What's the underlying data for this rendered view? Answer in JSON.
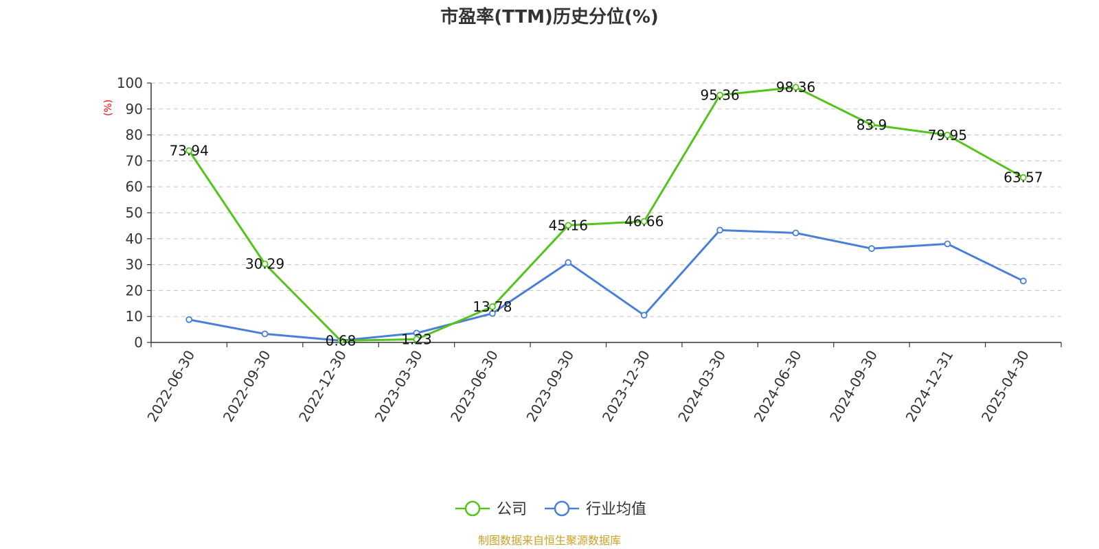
{
  "chart_data": {
    "type": "line",
    "title": "市盈率(TTM)历史分位(%)",
    "xlabel": "",
    "ylabel": "(%)",
    "ylim": [
      0,
      100
    ],
    "yticks": [
      0,
      10,
      20,
      30,
      40,
      50,
      60,
      70,
      80,
      90,
      100
    ],
    "grid": true,
    "legend_position": "bottom-center",
    "categories": [
      "2022-06-30",
      "2022-09-30",
      "2022-12-30",
      "2023-03-30",
      "2023-06-30",
      "2023-09-30",
      "2023-12-30",
      "2024-03-30",
      "2024-06-30",
      "2024-09-30",
      "2024-12-31",
      "2025-04-30"
    ],
    "series": [
      {
        "name": "公司",
        "color": "#52c41a",
        "values": [
          73.94,
          30.29,
          0.68,
          1.23,
          13.78,
          45.16,
          46.66,
          95.36,
          98.36,
          83.9,
          79.95,
          63.57
        ],
        "labels": [
          "73.94",
          "30.29",
          "0.68",
          "1.23",
          "13.78",
          "45.16",
          "46.66",
          "95.36",
          "98.36",
          "83.9",
          "79.95",
          "63.57"
        ]
      },
      {
        "name": "行业均值",
        "color": "#4a7fd8",
        "values": [
          8.8,
          3.3,
          0.7,
          3.6,
          11.2,
          30.8,
          10.5,
          43.3,
          42.2,
          36.2,
          38.0,
          23.7
        ]
      }
    ],
    "source": "制图数据来自恒生聚源数据库"
  }
}
